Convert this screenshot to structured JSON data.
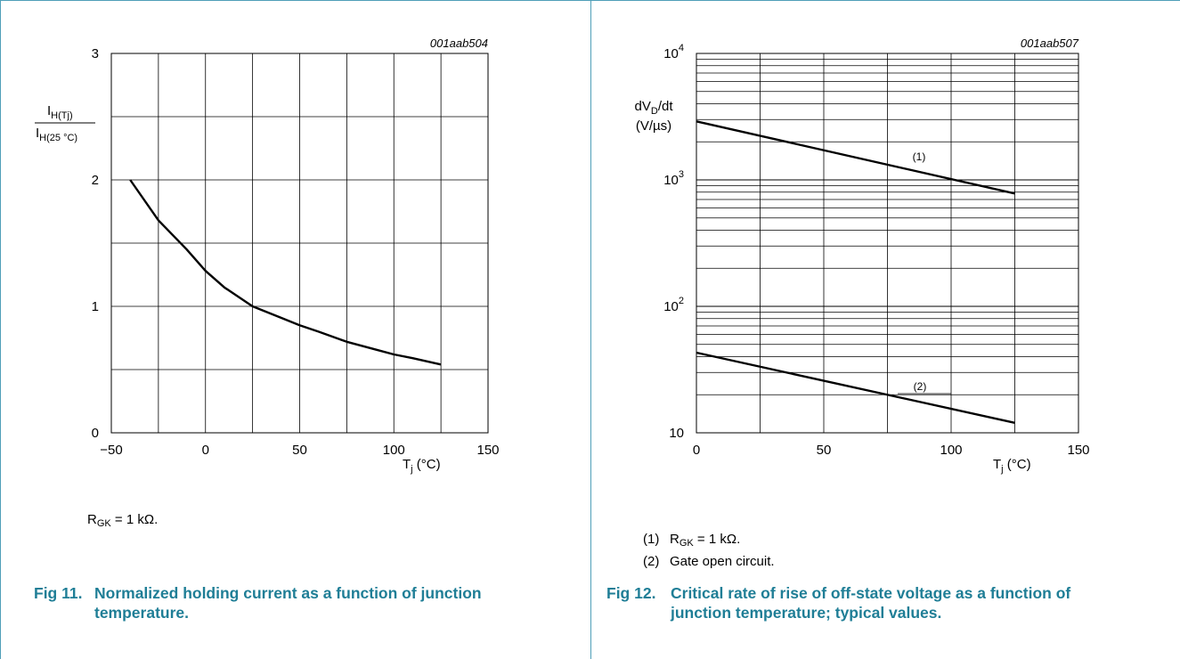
{
  "figures": [
    {
      "code": "001aab504",
      "figure_number": "Fig 11.",
      "caption": "Normalized holding current as a function of junction temperature.",
      "note": {
        "symbol": "R",
        "sub": "GK",
        "rest": " = 1 kΩ."
      }
    },
    {
      "code": "001aab507",
      "figure_number": "Fig 12.",
      "caption": "Critical rate of rise of off-state voltage as a function of junction temperature; typical values.",
      "notes": [
        {
          "num": "(1)",
          "symbol": "R",
          "sub": "GK",
          "rest": " = 1 kΩ."
        },
        {
          "num": "(2)",
          "text": "Gate open circuit."
        }
      ]
    }
  ],
  "chart_data": [
    {
      "type": "line",
      "xlabel": {
        "main": "T",
        "sub": "j",
        "rest": " (°C)"
      },
      "ylabel": {
        "numerator": {
          "main": "I",
          "sub": "H(Tj)"
        },
        "denominator": {
          "main": "I",
          "sub": "H(25 °C)"
        }
      },
      "xlim": [
        -50,
        150
      ],
      "ylim": [
        0,
        3
      ],
      "x_ticks": [
        "−50",
        "0",
        "50",
        "100",
        "150"
      ],
      "y_ticks": [
        "0",
        "1",
        "2",
        "3"
      ],
      "grid": true,
      "series": [
        {
          "x": [
            -40,
            -25,
            -10,
            0,
            10,
            25,
            40,
            50,
            60,
            75,
            90,
            100,
            110,
            125
          ],
          "y": [
            2.0,
            1.68,
            1.45,
            1.28,
            1.15,
            1.0,
            0.91,
            0.85,
            0.8,
            0.72,
            0.66,
            0.62,
            0.59,
            0.54
          ]
        }
      ]
    },
    {
      "type": "line",
      "log_y": true,
      "xlabel": {
        "main": "T",
        "sub": "j",
        "rest": " (°C)"
      },
      "ylabel": {
        "line1": {
          "pre": "dV",
          "sub": "D",
          "post": "/dt"
        },
        "line2": "(V/µs)"
      },
      "xlim": [
        0,
        150
      ],
      "ylim": [
        10,
        10000
      ],
      "x_ticks": [
        "0",
        "50",
        "100",
        "150"
      ],
      "y_ticks": [
        {
          "value": 10,
          "base": "10",
          "exp": ""
        },
        {
          "value": 100,
          "base": "10",
          "exp": "2"
        },
        {
          "value": 1000,
          "base": "10",
          "exp": "3"
        },
        {
          "value": 10000,
          "base": "10",
          "exp": "4"
        }
      ],
      "grid": true,
      "series": [
        {
          "label": "(1)",
          "x": [
            0,
            125
          ],
          "y": [
            2900,
            780
          ]
        },
        {
          "label": "(2)",
          "x": [
            0,
            125
          ],
          "y": [
            43,
            12
          ]
        }
      ]
    }
  ]
}
